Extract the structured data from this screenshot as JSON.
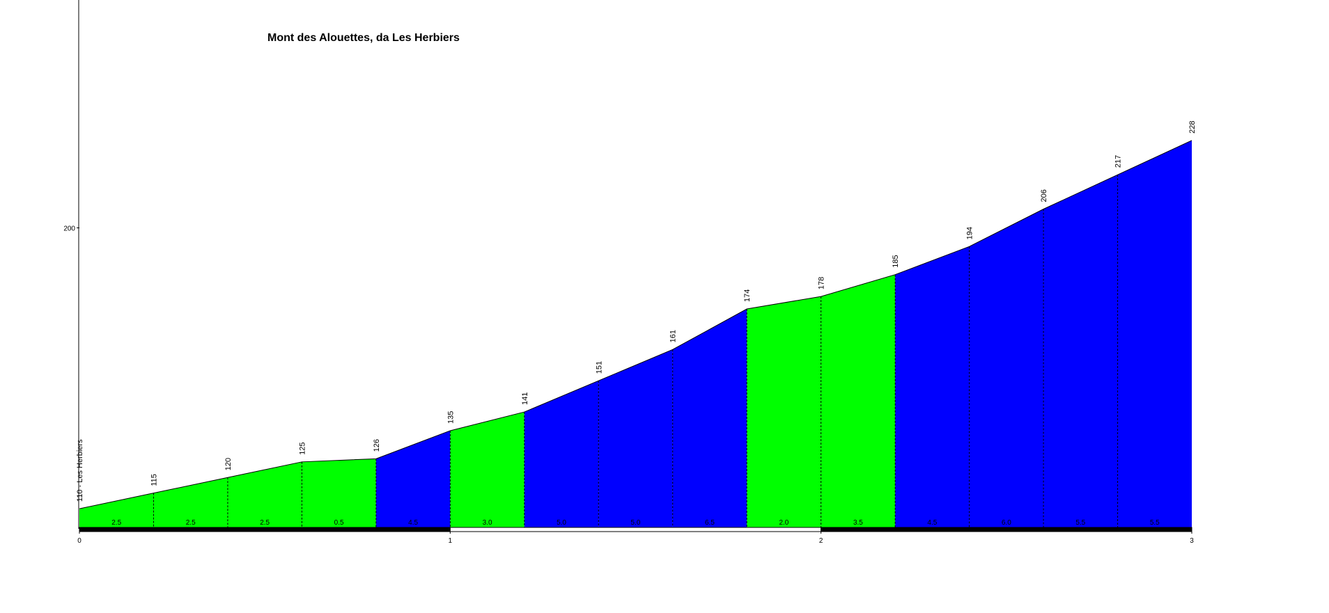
{
  "chart_data": {
    "type": "climb-profile",
    "title": "Mont des Alouettes,  da Les  Herbiers",
    "x": [
      0,
      0.2,
      0.4,
      0.6,
      0.8,
      1.0,
      1.2,
      1.4,
      1.6,
      1.8,
      2.0,
      2.2,
      2.4,
      2.6,
      2.8,
      3.0
    ],
    "values": [
      110,
      115,
      120,
      125,
      126,
      135,
      141,
      151,
      161,
      174,
      178,
      185,
      194,
      206,
      217,
      228
    ],
    "value_labels": [
      "110 - Les Herbiers",
      "115",
      "120",
      "125",
      "126",
      "135",
      "141",
      "151",
      "161",
      "174",
      "178",
      "185",
      "194",
      "206",
      "217",
      "228"
    ],
    "gradients": [
      2.5,
      2.5,
      2.5,
      0.5,
      4.5,
      3.0,
      5.0,
      5.0,
      6.5,
      2.0,
      3.5,
      4.5,
      6.0,
      5.5,
      5.5
    ],
    "gradient_labels": [
      "2.5",
      "2.5",
      "2.5",
      "0.5",
      "4.5",
      "3.0",
      "5.0",
      "5.0",
      "6.5",
      "2.0",
      "3.5",
      "4.5",
      "6.0",
      "5.5",
      "5.5"
    ],
    "segment_colors": [
      "#00ff00",
      "#00ff00",
      "#00ff00",
      "#00ff00",
      "#0000ff",
      "#00ff00",
      "#0000ff",
      "#0000ff",
      "#0000ff",
      "#00ff00",
      "#00ff00",
      "#0000ff",
      "#0000ff",
      "#0000ff",
      "#0000ff"
    ],
    "xlim": [
      0,
      3
    ],
    "xticks": [
      0,
      1,
      2,
      3
    ],
    "ylim": [
      104,
      273
    ],
    "yticks": [
      200
    ]
  }
}
